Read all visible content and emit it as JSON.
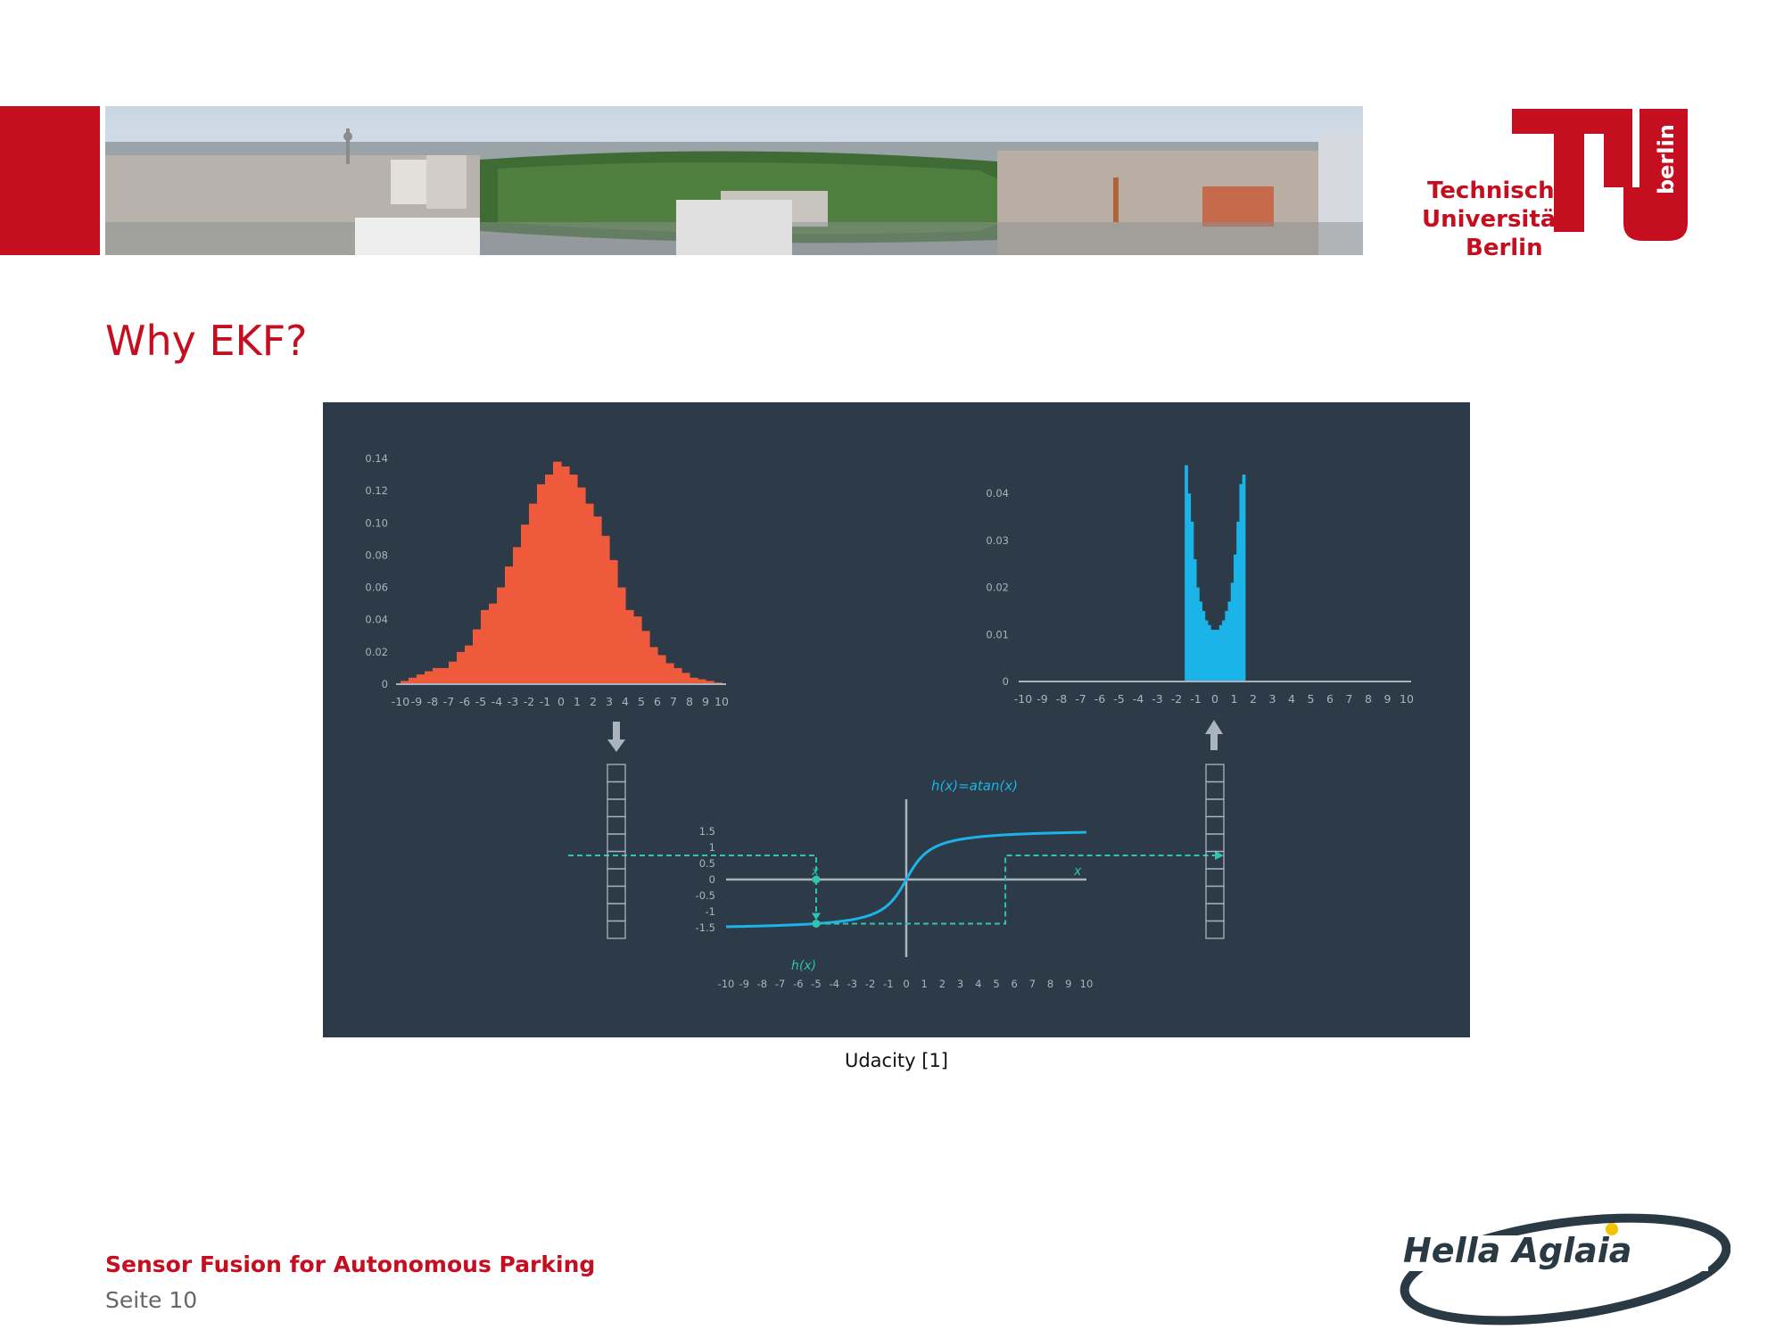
{
  "slide": {
    "title": "Why EKF?",
    "caption": "Udacity [1]",
    "footer_title": "Sensor Fusion for Autonomous Parking",
    "footer_page": "Seite 10"
  },
  "tu_logo": {
    "line1": "Technische",
    "line2": "Universität",
    "line3": "Berlin",
    "vertical": "berlin"
  },
  "hella_logo": {
    "text": "Hella Aglaia"
  },
  "colors": {
    "brand_red": "#c50e1f",
    "figure_bg": "#2d3a47",
    "hist_input": "#f05a3c",
    "hist_output": "#1ab4e8",
    "curve": "#1ab4e8",
    "axis": "#a9b4be",
    "dashed": "#2ec4b0"
  },
  "chart_data": [
    {
      "type": "bar",
      "name_hint": "input histogram",
      "x": [
        -9.75,
        -9.25,
        -8.75,
        -8.25,
        -7.75,
        -7.25,
        -6.75,
        -6.25,
        -5.75,
        -5.25,
        -4.75,
        -4.25,
        -3.75,
        -3.25,
        -2.75,
        -2.25,
        -1.75,
        -1.25,
        -0.75,
        -0.25,
        0.25,
        0.75,
        1.25,
        1.75,
        2.25,
        2.75,
        3.25,
        3.75,
        4.25,
        4.75,
        5.25,
        5.75,
        6.25,
        6.75,
        7.25,
        7.75,
        8.25,
        8.75,
        9.25,
        9.75
      ],
      "values": [
        0.002,
        0.004,
        0.006,
        0.008,
        0.01,
        0.01,
        0.014,
        0.02,
        0.024,
        0.034,
        0.046,
        0.05,
        0.06,
        0.073,
        0.085,
        0.099,
        0.112,
        0.124,
        0.13,
        0.138,
        0.135,
        0.13,
        0.122,
        0.112,
        0.104,
        0.092,
        0.077,
        0.06,
        0.046,
        0.042,
        0.033,
        0.023,
        0.018,
        0.013,
        0.01,
        0.007,
        0.004,
        0.003,
        0.002,
        0.001
      ],
      "xticks": [
        "-10",
        "-9",
        "-8",
        "-7",
        "-6",
        "-5",
        "-4",
        "-3",
        "-2",
        "-1",
        "0",
        "1",
        "2",
        "3",
        "4",
        "5",
        "6",
        "7",
        "8",
        "9",
        "10"
      ],
      "yticks": [
        "0",
        "0.02",
        "0.04",
        "0.06",
        "0.08",
        "0.10",
        "0.12",
        "0.14"
      ],
      "xlim": [
        -10,
        10
      ],
      "ylim": [
        0,
        0.14
      ]
    },
    {
      "type": "bar",
      "name_hint": "output histogram",
      "x": [
        -1.5,
        -1.35,
        -1.2,
        -1.05,
        -0.9,
        -0.75,
        -0.6,
        -0.45,
        -0.3,
        -0.15,
        0,
        0.15,
        0.3,
        0.45,
        0.6,
        0.75,
        0.9,
        1.05,
        1.2,
        1.35,
        1.5
      ],
      "values": [
        0.046,
        0.04,
        0.034,
        0.026,
        0.02,
        0.017,
        0.015,
        0.013,
        0.012,
        0.011,
        0.011,
        0.011,
        0.012,
        0.013,
        0.015,
        0.017,
        0.021,
        0.027,
        0.034,
        0.042,
        0.044
      ],
      "xticks": [
        "-10",
        "-9",
        "-8",
        "-7",
        "-6",
        "-5",
        "-4",
        "-3",
        "-2",
        "-1",
        "0",
        "1",
        "2",
        "3",
        "4",
        "5",
        "6",
        "7",
        "8",
        "9",
        "10"
      ],
      "yticks": [
        "0",
        "0.01",
        "0.02",
        "0.03",
        "0.04"
      ],
      "xlim": [
        -10,
        10
      ],
      "ylim": [
        0,
        0.048
      ]
    },
    {
      "type": "line",
      "name_hint": "nonlinear function",
      "function_label": "h(x)=atan(x)",
      "x_label": "x",
      "xi_label": "x",
      "hx_label": "h(x)",
      "x": [
        -10,
        -9,
        -8,
        -7,
        -6,
        -5,
        -4,
        -3,
        -2,
        -1,
        0,
        1,
        2,
        3,
        4,
        5,
        6,
        7,
        8,
        9,
        10
      ],
      "y": [
        -1.471,
        -1.46,
        -1.446,
        -1.429,
        -1.406,
        -1.373,
        -1.326,
        -1.249,
        -1.107,
        -0.785,
        0,
        0.785,
        1.107,
        1.249,
        1.326,
        1.373,
        1.406,
        1.429,
        1.446,
        1.46,
        1.471
      ],
      "xticks": [
        "-10",
        "-9",
        "-8",
        "-7",
        "-6",
        "-5",
        "-4",
        "-3",
        "-2",
        "-1",
        "0",
        "1",
        "2",
        "3",
        "4",
        "5",
        "6",
        "7",
        "8",
        "9",
        "10"
      ],
      "yticks": [
        "1.5",
        "1",
        "0.5",
        "0",
        "-0.5",
        "-1",
        "-1.5"
      ],
      "xlim": [
        -10,
        10
      ],
      "ylim": [
        -1.5,
        1.5
      ]
    }
  ]
}
